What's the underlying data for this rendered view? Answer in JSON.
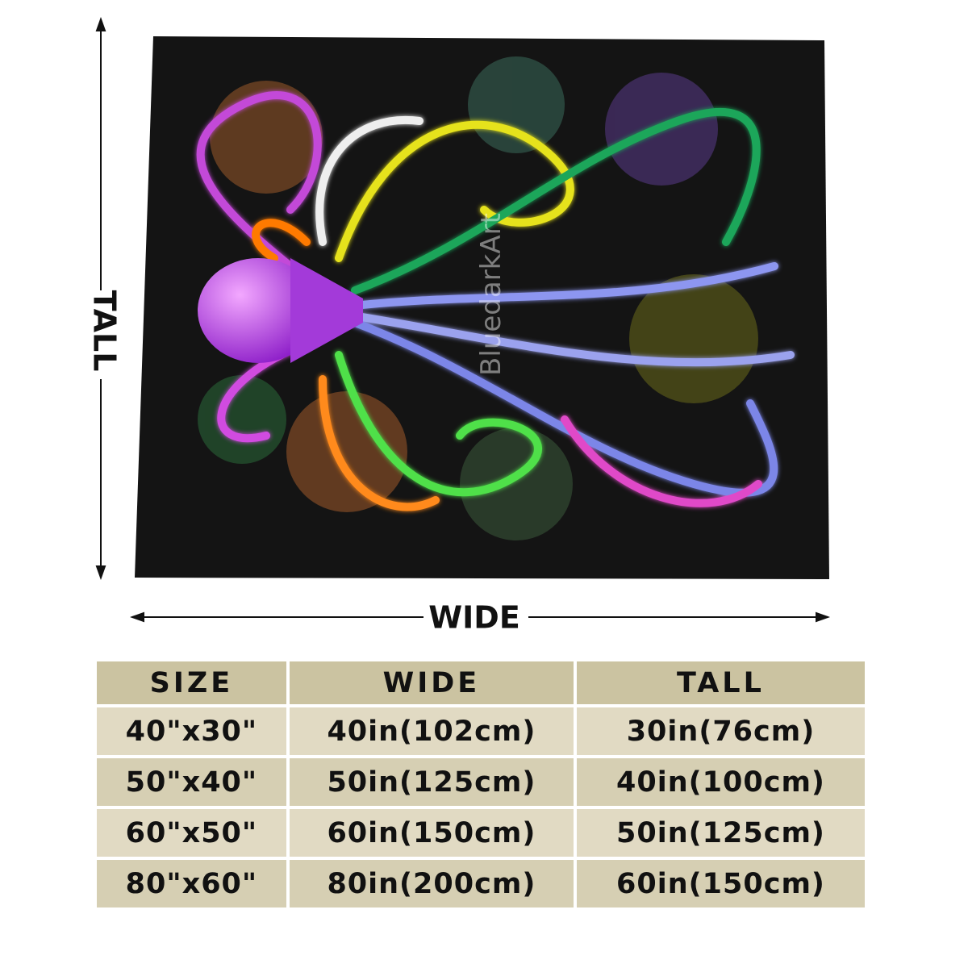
{
  "blanket": {
    "watermark": "BluedarkArt"
  },
  "dimensions": {
    "tall": "TALL",
    "wide": "WIDE"
  },
  "table": {
    "header": [
      "SIZE",
      "WIDE",
      "TALL"
    ],
    "rows": [
      [
        "40\"x30\"",
        "40in(102cm)",
        "30in(76cm)"
      ],
      [
        "50\"x40\"",
        "50in(125cm)",
        "40in(100cm)"
      ],
      [
        "60\"x50\"",
        "60in(150cm)",
        "50in(125cm)"
      ],
      [
        "80\"x60\"",
        "80in(200cm)",
        "60in(150cm)"
      ]
    ]
  }
}
